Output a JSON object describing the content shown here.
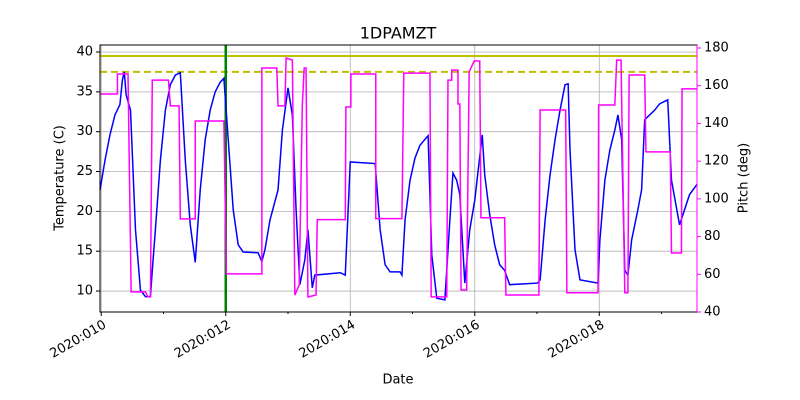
{
  "chart_data": {
    "type": "line",
    "title": "1DPAMZT",
    "xlabel": "Date",
    "ylabel": "Temperature (C)",
    "y2label": "Pitch (deg)",
    "xlim": [
      9.98,
      19.57
    ],
    "ylim": [
      7.37,
      40.88
    ],
    "y2lim": [
      40,
      181.6
    ],
    "xticks": [
      {
        "value": 10,
        "label": "2020:010"
      },
      {
        "value": 12,
        "label": "2020:012"
      },
      {
        "value": 14,
        "label": "2020:014"
      },
      {
        "value": 16,
        "label": "2020:016"
      },
      {
        "value": 18,
        "label": "2020:018"
      }
    ],
    "xminorticks": [
      11,
      13,
      15,
      17,
      19
    ],
    "yticks": [
      10,
      15,
      20,
      25,
      30,
      35,
      40
    ],
    "y2ticks": [
      40,
      60,
      80,
      100,
      120,
      140,
      160,
      180
    ],
    "y2color": "#ff00ff",
    "grid": true,
    "hlines": [
      {
        "y": 39.5,
        "color": "#bfbf00",
        "style": "solid"
      },
      {
        "y": 37.5,
        "color": "#bfbf00",
        "style": "dashed"
      }
    ],
    "vlines": [
      {
        "x": 12,
        "color": "#008000"
      }
    ],
    "series": [
      {
        "color": "#0000ff",
        "axis": "y",
        "x": [
          9.98,
          10.06,
          10.14,
          10.22,
          10.3,
          10.34,
          10.37,
          10.4,
          10.47,
          10.55,
          10.63,
          10.71,
          10.79,
          10.82,
          10.87,
          10.95,
          11.03,
          11.11,
          11.19,
          11.27,
          11.35,
          11.43,
          11.51,
          11.59,
          11.67,
          11.75,
          11.83,
          11.91,
          11.97,
          12.04,
          12.12,
          12.2,
          12.28,
          12.52,
          12.58,
          12.63,
          12.71,
          12.84,
          12.91,
          13.0,
          13.07,
          13.13,
          13.19,
          13.27,
          13.32,
          13.39,
          13.43,
          13.84,
          13.92,
          14.0,
          14.4,
          14.48,
          14.56,
          14.64,
          14.8,
          14.83,
          14.88,
          14.96,
          15.04,
          15.12,
          15.25,
          15.31,
          15.39,
          15.52,
          15.6,
          15.65,
          15.71,
          15.76,
          15.84,
          15.92,
          16.0,
          16.12,
          16.16,
          16.24,
          16.32,
          16.4,
          16.48,
          16.56,
          17.01,
          17.05,
          17.13,
          17.21,
          17.29,
          17.37,
          17.45,
          17.5,
          17.53,
          17.61,
          17.69,
          17.98,
          18.01,
          18.09,
          18.17,
          18.25,
          18.3,
          18.36,
          18.41,
          18.46,
          18.52,
          18.62,
          18.68,
          18.73,
          18.81,
          18.89,
          18.97,
          19.1,
          19.16,
          19.29,
          19.45,
          19.57
        ],
        "values": [
          22.7,
          26.4,
          29.6,
          32.1,
          33.4,
          36.5,
          37.5,
          34.6,
          32.7,
          17.7,
          10.1,
          9.3,
          9.3,
          12.6,
          17.7,
          26.4,
          32.7,
          35.9,
          37.1,
          37.4,
          26.4,
          18.3,
          13.6,
          22.7,
          29.0,
          32.7,
          35.0,
          36.2,
          36.7,
          29.0,
          20.2,
          15.8,
          14.9,
          14.8,
          13.7,
          15.2,
          18.9,
          22.7,
          30.2,
          35.5,
          32.1,
          20.2,
          10.8,
          13.9,
          17.7,
          10.4,
          12.0,
          12.3,
          12.0,
          26.2,
          26.0,
          17.7,
          13.3,
          12.4,
          12.4,
          12.0,
          18.9,
          23.9,
          26.7,
          28.3,
          29.5,
          14.5,
          9.1,
          8.9,
          18.9,
          24.8,
          23.9,
          22.1,
          11.0,
          17.7,
          21.4,
          29.6,
          24.6,
          19.6,
          15.8,
          13.3,
          12.6,
          10.8,
          11.0,
          11.4,
          18.9,
          24.6,
          29.0,
          32.7,
          35.9,
          36.0,
          27.7,
          15.2,
          11.4,
          11.0,
          16.4,
          23.9,
          27.7,
          30.2,
          32.1,
          29.0,
          12.6,
          12.0,
          16.4,
          20.2,
          22.7,
          31.5,
          32.1,
          32.7,
          33.5,
          34.0,
          23.9,
          18.3,
          22.1,
          23.4
        ]
      },
      {
        "color": "#ff00ff",
        "axis": "y2",
        "x": [
          9.98,
          10.26,
          10.26,
          10.43,
          10.48,
          10.71,
          10.75,
          10.79,
          10.82,
          11.08,
          11.11,
          11.25,
          11.27,
          11.51,
          11.51,
          11.97,
          12.01,
          12.58,
          12.58,
          12.82,
          12.84,
          12.95,
          12.97,
          13.07,
          13.11,
          13.18,
          13.23,
          13.26,
          13.29,
          13.32,
          13.45,
          13.47,
          13.92,
          13.93,
          14.01,
          14.01,
          14.41,
          14.41,
          14.83,
          14.86,
          15.28,
          15.3,
          15.55,
          15.57,
          15.63,
          15.63,
          15.73,
          15.73,
          15.76,
          15.78,
          15.87,
          15.91,
          15.99,
          16.08,
          16.1,
          16.48,
          16.5,
          17.03,
          17.05,
          17.46,
          17.48,
          17.98,
          17.99,
          18.25,
          18.28,
          18.35,
          18.36,
          18.41,
          18.46,
          18.48,
          18.73,
          18.75,
          19.14,
          19.16,
          19.32,
          19.33,
          19.57
        ],
        "values": [
          155.6,
          155.6,
          166.2,
          166.2,
          50.7,
          50.7,
          48.0,
          48.0,
          163.0,
          163.0,
          149.3,
          149.3,
          89.4,
          89.4,
          141.3,
          141.3,
          60.2,
          60.2,
          169.4,
          169.4,
          149.3,
          149.3,
          174.7,
          173.6,
          49.0,
          54.4,
          149.8,
          169.4,
          169.4,
          48.0,
          49.0,
          89.0,
          89.0,
          148.7,
          148.7,
          166.2,
          166.2,
          89.5,
          89.5,
          166.7,
          166.7,
          48.0,
          48.0,
          163.0,
          163.0,
          168.3,
          168.3,
          150.3,
          150.3,
          51.7,
          51.7,
          167.3,
          173.1,
          173.1,
          90.0,
          90.0,
          49.0,
          49.0,
          147.1,
          147.1,
          50.2,
          50.2,
          149.8,
          149.8,
          173.6,
          173.6,
          152.4,
          50.2,
          50.2,
          165.7,
          165.7,
          124.9,
          124.9,
          71.3,
          71.3,
          158.3,
          158.3
        ]
      }
    ]
  }
}
